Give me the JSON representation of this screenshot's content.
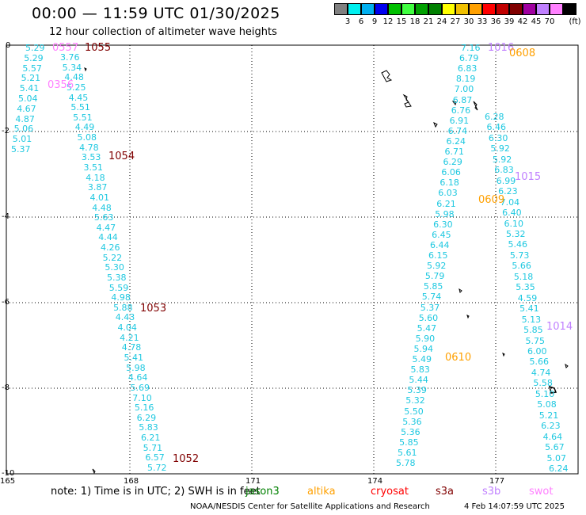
{
  "title": "00:00 — 11:59 UTC 01/30/2025",
  "subtitle": "12 hour collection of altimeter wave heights",
  "color_scale": {
    "colors": [
      "#808080",
      "#00f0f0",
      "#00b0f0",
      "#0000f0",
      "#00c000",
      "#40ff40",
      "#00a000",
      "#008000",
      "#ffff00",
      "#f0c000",
      "#ffa000",
      "#ff0000",
      "#c00000",
      "#800000",
      "#a000a0",
      "#c080ff",
      "#ff80ff",
      "#000000"
    ],
    "labels": [
      "3",
      "6",
      "9",
      "12",
      "15",
      "18",
      "21",
      "24",
      "27",
      "30",
      "33",
      "36",
      "39",
      "42",
      "45",
      "70"
    ],
    "unit": "(ft)"
  },
  "axes": {
    "y_labels": [
      "0",
      "-2",
      "-4",
      "-6",
      "-8",
      "-10"
    ],
    "x_labels": [
      "165",
      "168",
      "171",
      "174",
      "177"
    ]
  },
  "pass_labels": [
    {
      "text": "1055",
      "color": "#800000"
    },
    {
      "text": "0557",
      "color": "#ff80ff"
    },
    {
      "text": "0356",
      "color": "#ff80ff"
    },
    {
      "text": "1054",
      "color": "#800000"
    },
    {
      "text": "1053",
      "color": "#800000"
    },
    {
      "text": "1052",
      "color": "#800000"
    },
    {
      "text": "1016",
      "color": "#c080ff"
    },
    {
      "text": "0608",
      "color": "#ffa000"
    },
    {
      "text": "1015",
      "color": "#c080ff"
    },
    {
      "text": "0609",
      "color": "#ffa000"
    },
    {
      "text": "1014",
      "color": "#c080ff"
    },
    {
      "text": "0610",
      "color": "#ffa000"
    }
  ],
  "track_west_outer": [
    "5.29",
    "5.29",
    "5.57",
    "5.21",
    "5.41",
    "5.04",
    "4.67",
    "4.87",
    "5.06",
    "5.01",
    "5.37"
  ],
  "track_west_main": [
    "3.76",
    "5.34",
    "4.48",
    "5.25",
    "4.45",
    "5.51",
    "5.51",
    "4.49",
    "5.08",
    "4.78",
    "3.53",
    "3.51",
    "4.18",
    "3.87",
    "4.01",
    "4.48",
    "5.63",
    "4.47",
    "4.44",
    "4.26",
    "5.22",
    "5.30",
    "5.38",
    "5.59",
    "4.98",
    "5.88",
    "4.43",
    "4.04",
    "4.21",
    "4.78",
    "5.41",
    "5.98",
    "4.64",
    "5.69",
    "7.10",
    "5.16",
    "6.29",
    "5.83",
    "6.21",
    "5.71",
    "6.57",
    "5.72"
  ],
  "track_east_1": [
    "7.16",
    "6.79",
    "6.83",
    "8.19",
    "7.00",
    "6.87",
    "6.76",
    "6.91",
    "6.74",
    "6.24",
    "6.71",
    "6.29",
    "6.06",
    "6.18",
    "6.03",
    "6.21",
    "5.98",
    "6.30",
    "6.45",
    "6.44",
    "6.15",
    "5.92",
    "5.79",
    "5.85",
    "5.74",
    "5.37",
    "5.60",
    "5.47",
    "5.90",
    "5.94",
    "5.49",
    "5.83",
    "5.44",
    "5.39",
    "5.32",
    "5.50",
    "5.36",
    "5.36",
    "5.85",
    "5.61",
    "5.78"
  ],
  "track_east_2": [
    "6.28",
    "6.46",
    "6.30",
    "5.92",
    "5.92",
    "6.83",
    "6.99",
    "6.23",
    "7.04",
    "6.40",
    "6.10",
    "5.32",
    "5.46",
    "5.73",
    "5.66",
    "5.18",
    "5.35",
    "4.59",
    "5.41",
    "5.13",
    "5.85",
    "5.75",
    "6.00",
    "5.66",
    "4.74",
    "5.58",
    "5.10",
    "5.08",
    "5.21",
    "6.23",
    "4.64",
    "5.67",
    "5.07",
    "6.24"
  ],
  "note": "note:  1) Time is in UTC; 2) SWH is in feet",
  "satellites": [
    {
      "name": "jason3",
      "color": "#008000"
    },
    {
      "name": "altika",
      "color": "#ffa000"
    },
    {
      "name": "cryosat",
      "color": "#ff0000"
    },
    {
      "name": "s3a",
      "color": "#800000"
    },
    {
      "name": "s3b",
      "color": "#c080ff"
    },
    {
      "name": "swot",
      "color": "#ff80ff"
    }
  ],
  "credit": "NOAA/NESDIS Center for Satellite Applications and Research",
  "timestamp": "4 Feb 14:07:59 UTC 2025"
}
